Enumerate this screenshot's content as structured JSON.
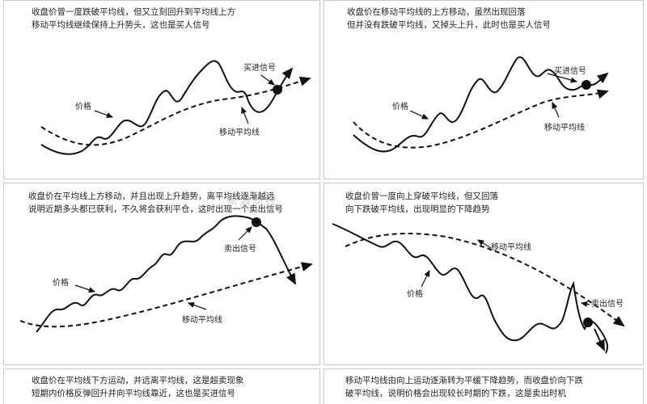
{
  "panels": [
    {
      "caption": [
        "收盘价曾一度跌破平均线，但又立刻回升到平均线上方",
        "移动平均线继续保持上升势头，这也是买人信号"
      ],
      "price_label": "价格",
      "ma_label": "移动平均线",
      "signal_label": "买进信号"
    },
    {
      "caption": [
        "收盘价在移动平均线的上方移动，虽然出现回落",
        "但并没有跌破平均线，又掉头上升，此时也是买人信号"
      ],
      "price_label": "价格",
      "ma_label": "移动平均线",
      "signal_label": "买进信号"
    },
    {
      "caption": [
        "收盘价在平均线上方移动，并且出现上升趋势，离平均线逐渐越远",
        "说明近期多头都已获利，不久将会获利平仓，这时出现一个卖出信号"
      ],
      "price_label": "价格",
      "ma_label": "移动平均线",
      "signal_label": "卖出信号"
    },
    {
      "caption": [
        "收盘价曾一度向上穿破平均线，但又回落",
        "向下跌破平均线，出现明显的下降趋势"
      ],
      "price_label": "价格",
      "ma_label": "移动平均线",
      "signal_label": "卖出信号"
    },
    {
      "caption": [
        "收盘价在平均线下方运动，并远离平均线，这是超卖现象",
        "短期内价格反弹回升并向平均线靠近，这也是买进信号"
      ]
    },
    {
      "caption": [
        "移动平均线由向上运动逐渐转为平缓下降趋势，而收盘价向下跌",
        "破平均线，说明价格会出现较长时期的下跌，这是卖出时机"
      ]
    }
  ],
  "watermark": "新浪财经",
  "colors": {
    "line": "#111111",
    "border": "#c9c9c9"
  }
}
